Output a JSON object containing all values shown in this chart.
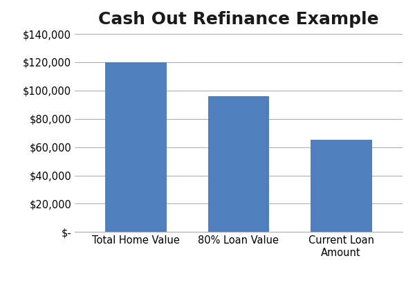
{
  "title": "Cash Out Refinance Example",
  "categories": [
    "Total Home Value",
    "80% Loan Value",
    "Current Loan\nAmount"
  ],
  "values": [
    120000,
    96000,
    65000
  ],
  "bar_color": "#4F7FBD",
  "ylim": [
    0,
    140000
  ],
  "yticks": [
    0,
    20000,
    40000,
    60000,
    80000,
    100000,
    120000,
    140000
  ],
  "ytick_labels": [
    "$-",
    "$20,000",
    "$40,000",
    "$60,000",
    "$80,000",
    "$100,000",
    "$120,000",
    "$140,000"
  ],
  "title_fontsize": 18,
  "tick_fontsize": 10.5,
  "background_color": "#ffffff",
  "grid_color": "#aaaaaa",
  "bar_width": 0.6
}
